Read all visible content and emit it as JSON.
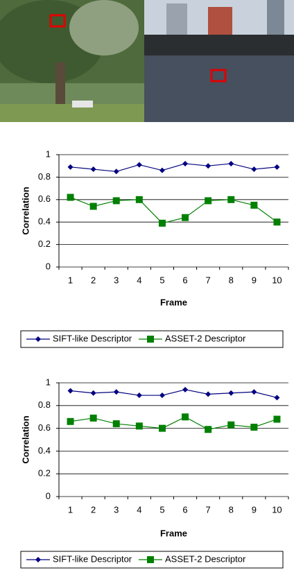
{
  "chart_data": [
    {
      "type": "line",
      "categories": [
        "1",
        "2",
        "3",
        "4",
        "5",
        "6",
        "7",
        "8",
        "9",
        "10"
      ],
      "series": [
        {
          "name": "SIFT-like Descriptor",
          "color": "#000080",
          "marker": "diamond",
          "values": [
            0.89,
            0.87,
            0.85,
            0.91,
            0.86,
            0.92,
            0.9,
            0.92,
            0.87,
            0.89
          ]
        },
        {
          "name": "ASSET-2 Descriptor",
          "color": "#008000",
          "marker": "square",
          "values": [
            0.62,
            0.54,
            0.59,
            0.6,
            0.39,
            0.44,
            0.59,
            0.6,
            0.55,
            0.4
          ]
        }
      ],
      "ylim": [
        0,
        1
      ],
      "yticks": [
        0,
        0.2,
        0.4,
        0.6,
        0.8,
        1
      ],
      "grid": true,
      "y_label": "Correlation",
      "x_label": "Frame",
      "legend": "bottom"
    },
    {
      "type": "line",
      "categories": [
        "1",
        "2",
        "3",
        "4",
        "5",
        "6",
        "7",
        "8",
        "9",
        "10"
      ],
      "series": [
        {
          "name": "SIFT-like Descriptor",
          "color": "#000080",
          "marker": "diamond",
          "values": [
            0.93,
            0.91,
            0.92,
            0.89,
            0.89,
            0.94,
            0.9,
            0.91,
            0.92,
            0.87
          ]
        },
        {
          "name": "ASSET-2 Descriptor",
          "color": "#008000",
          "marker": "square",
          "values": [
            0.66,
            0.69,
            0.64,
            0.62,
            0.6,
            0.7,
            0.59,
            0.63,
            0.61,
            0.68
          ]
        }
      ],
      "ylim": [
        0,
        1
      ],
      "yticks": [
        0,
        0.2,
        0.4,
        0.6,
        0.8,
        1
      ],
      "grid": true,
      "y_label": "Correlation",
      "x_label": "Frame",
      "legend": "bottom"
    }
  ]
}
